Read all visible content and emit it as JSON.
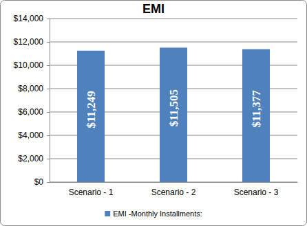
{
  "chart_data": {
    "type": "bar",
    "title": "EMI",
    "categories": [
      "Scenario - 1",
      "Scenario - 2",
      "Scenario - 3"
    ],
    "series": [
      {
        "name": "EMI -Monthly Installments:",
        "color": "#4f81bd",
        "values": [
          11249,
          11505,
          11377
        ],
        "value_labels": [
          "$11,249",
          "$11,505",
          "$11,377"
        ]
      }
    ],
    "ylim": [
      0,
      14000
    ],
    "yticks": [
      {
        "value": 0,
        "label": "$0"
      },
      {
        "value": 2000,
        "label": "$2,000"
      },
      {
        "value": 4000,
        "label": "$4,000"
      },
      {
        "value": 6000,
        "label": "$6,000"
      },
      {
        "value": 8000,
        "label": "$8,000"
      },
      {
        "value": 10000,
        "label": "$10,000"
      },
      {
        "value": 12000,
        "label": "$12,000"
      },
      {
        "value": 14000,
        "label": "$14,000"
      }
    ],
    "grid": true,
    "legend": "bottom",
    "data_labels": true
  }
}
